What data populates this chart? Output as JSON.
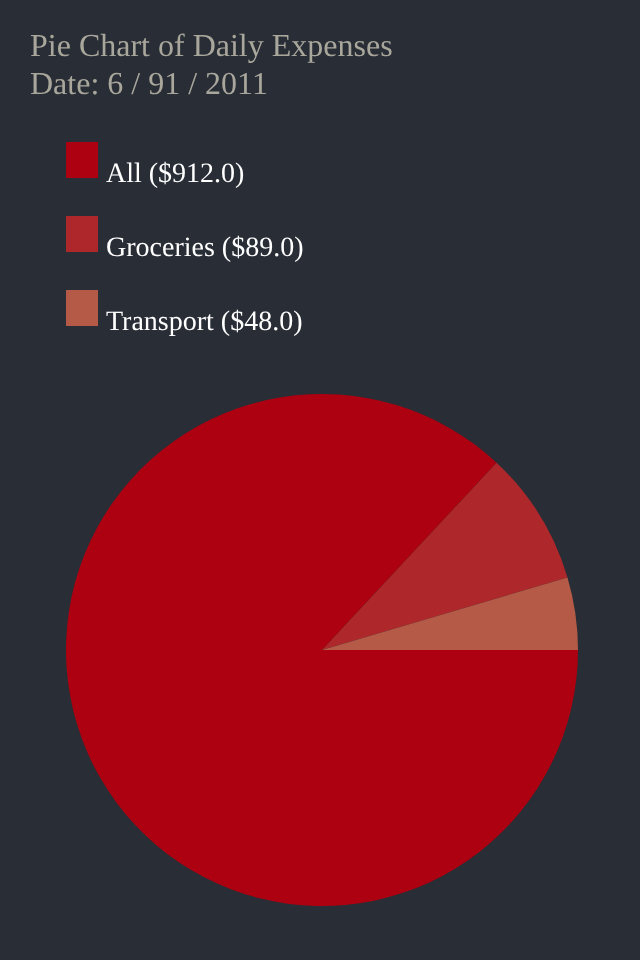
{
  "chart_data": {
    "type": "pie",
    "title": "Pie Chart of Daily Expenses",
    "subtitle": "Date: 6 / 91 / 2011",
    "categories": [
      "All ($912.0)",
      "Groceries ($89.0)",
      "Transport ($48.0)"
    ],
    "values": [
      912,
      89,
      48
    ],
    "colors": [
      "#ad0010",
      "#ae272a",
      "#b45a46"
    ],
    "legend": "top left"
  }
}
